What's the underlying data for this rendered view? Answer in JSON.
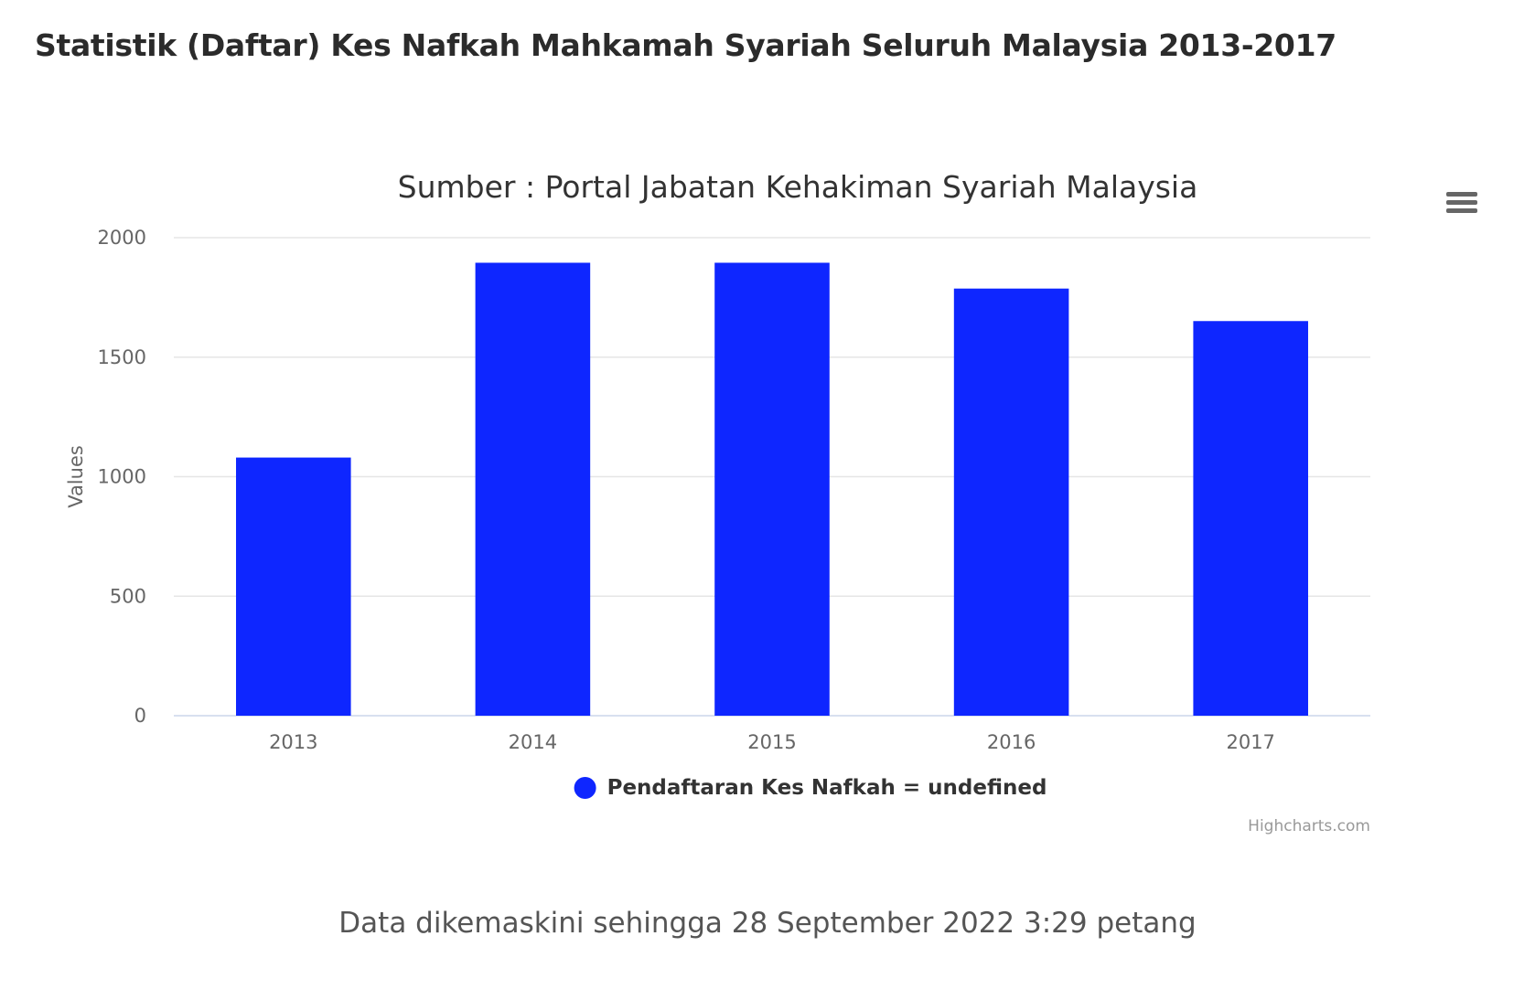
{
  "page": {
    "heading": "Statistik (Daftar) Kes Nafkah Mahkamah Syariah Seluruh Malaysia 2013-2017",
    "footer_note": "Data dikemaskini sehingga 28 September 2022 3:29 petang"
  },
  "chart_menu": {
    "icon": "hamburger-menu-icon"
  },
  "chart_data": {
    "type": "bar",
    "title": "Sumber : Portal Jabatan Kehakiman Syariah Malaysia",
    "xlabel": "",
    "ylabel": "Values",
    "categories": [
      "2013",
      "2014",
      "2015",
      "2016",
      "2017"
    ],
    "series": [
      {
        "name": "Pendaftaran Kes Nafkah = undefined",
        "color": "#0e26ff",
        "values": [
          1080,
          1895,
          1895,
          1787,
          1651
        ]
      }
    ],
    "ylim": [
      0,
      2000
    ],
    "yticks": [
      0,
      500,
      1000,
      1500,
      2000
    ],
    "grid": true,
    "legend_position": "bottom-center",
    "credits": "Highcharts.com"
  }
}
